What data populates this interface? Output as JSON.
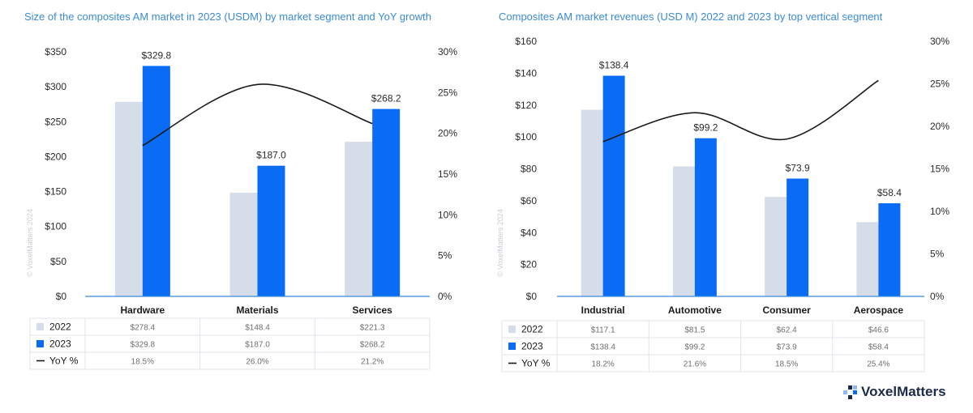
{
  "colors": {
    "c2022": "#d5dde9",
    "c2023": "#0a6cf5",
    "yoy": "#1a1a1a",
    "axis": "#3a8ad6",
    "grid": "#dfe3ea"
  },
  "watermark": "© VoxelMatters 2024",
  "brand": "VoxelMatters",
  "chart_data": [
    {
      "type": "bar",
      "title": "Size of the composites AM market in 2023 (USDM) by market segment and YoY growth",
      "categories": [
        "Hardware",
        "Materials",
        "Services"
      ],
      "series": [
        {
          "name": "2022",
          "values": [
            278.4,
            148.4,
            221.3
          ],
          "labels": [
            "$278.4",
            "$148.4",
            "$221.3"
          ]
        },
        {
          "name": "2023",
          "values": [
            329.8,
            187.0,
            268.2
          ],
          "labels": [
            "$329.8",
            "$187.0",
            "$268.2"
          ]
        },
        {
          "name": "YoY %",
          "type": "line",
          "axis": "right",
          "values": [
            18.5,
            26.0,
            21.2
          ],
          "labels": [
            "18.5%",
            "26.0%",
            "21.2%"
          ]
        }
      ],
      "ylim": [
        0,
        350
      ],
      "yticks": [
        "$0",
        "$50",
        "$100",
        "$150",
        "$200",
        "$250",
        "$300",
        "$350"
      ],
      "y2lim": [
        0,
        30
      ],
      "y2ticks": [
        "0%",
        "5%",
        "10%",
        "15%",
        "20%",
        "25%",
        "30%"
      ],
      "bar_labels_2023": [
        "$329.8",
        "$187.0",
        "$268.2"
      ],
      "legend": "table-below"
    },
    {
      "type": "bar",
      "title": "Composites AM market revenues (USD M) 2022 and 2023 by top vertical segment",
      "categories": [
        "Industrial",
        "Automotive",
        "Consumer",
        "Aerospace"
      ],
      "series": [
        {
          "name": "2022",
          "values": [
            117.1,
            81.5,
            62.4,
            46.6
          ],
          "labels": [
            "$117.1",
            "$81.5",
            "$62.4",
            "$46.6"
          ]
        },
        {
          "name": "2023",
          "values": [
            138.4,
            99.2,
            73.9,
            58.4
          ],
          "labels": [
            "$138.4",
            "$99.2",
            "$73.9",
            "$58.4"
          ]
        },
        {
          "name": "YoY %",
          "type": "line",
          "axis": "right",
          "values": [
            18.2,
            21.6,
            18.5,
            25.4
          ],
          "labels": [
            "18.2%",
            "21.6%",
            "18.5%",
            "25.4%"
          ]
        }
      ],
      "ylim": [
        0,
        160
      ],
      "yticks": [
        "$0",
        "$20",
        "$40",
        "$60",
        "$80",
        "$100",
        "$120",
        "$140",
        "$160"
      ],
      "y2lim": [
        0,
        30
      ],
      "y2ticks": [
        "0%",
        "5%",
        "10%",
        "15%",
        "20%",
        "25%",
        "30%"
      ],
      "bar_labels_2023": [
        "$138.4",
        "$99.2",
        "$73.9",
        "$58.4"
      ],
      "legend": "table-below"
    }
  ]
}
